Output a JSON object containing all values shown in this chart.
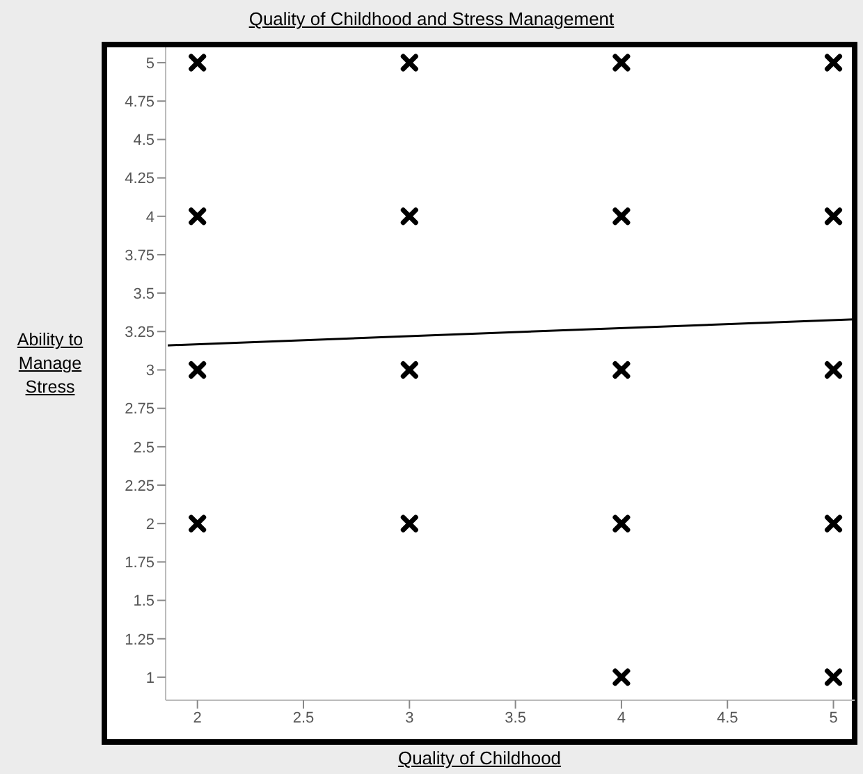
{
  "chart_data": {
    "type": "scatter",
    "title": "Quality of Childhood and Stress Management",
    "xlabel": "Quality of Childhood",
    "ylabel": "Ability to Manage Stress",
    "xlim": [
      1.85,
      5.1
    ],
    "ylim": [
      0.85,
      5.1
    ],
    "xticks": [
      2,
      2.5,
      3,
      3.5,
      4,
      4.5,
      5
    ],
    "yticks": [
      1,
      1.25,
      1.5,
      1.75,
      2,
      2.25,
      2.5,
      2.75,
      3,
      3.25,
      3.5,
      3.75,
      4,
      4.25,
      4.5,
      4.75,
      5
    ],
    "series": [
      {
        "color": "#000000",
        "marker": "cross",
        "x": [
          2,
          2,
          2,
          2,
          3,
          3,
          3,
          3,
          4,
          4,
          4,
          4,
          4,
          5,
          5,
          5,
          5,
          5
        ],
        "values": [
          5,
          4,
          3,
          2,
          5,
          4,
          3,
          2,
          5,
          4,
          3,
          2,
          1,
          5,
          4,
          3,
          2,
          1
        ]
      },
      {
        "type": "line",
        "color": "#000000",
        "marker": "none",
        "line_style": "solid",
        "x": [
          1.86,
          5.1
        ],
        "values": [
          3.16,
          3.33
        ]
      }
    ]
  }
}
